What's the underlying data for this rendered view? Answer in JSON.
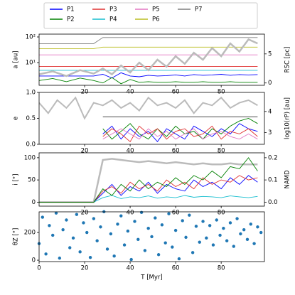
{
  "chart_data": [
    {
      "type": "line",
      "ylabel": "a [au]",
      "y2label": "RSC [pc]",
      "ylog": true,
      "x": [
        0,
        6,
        12,
        18,
        24,
        28,
        32,
        36,
        40,
        44,
        48,
        52,
        56,
        60,
        64,
        68,
        72,
        76,
        80,
        84,
        88,
        92,
        96
      ],
      "xlim": [
        0,
        99
      ],
      "xticks": [
        20,
        40,
        60,
        80
      ],
      "ylim": [
        1.3,
        129
      ],
      "yticks": [
        {
          "value": 10,
          "label": "10¹"
        },
        {
          "value": 100,
          "label": "10²"
        }
      ],
      "y2lim": [
        -0.4,
        8.4
      ],
      "y2ticks": [
        0,
        5
      ],
      "series": [
        {
          "name": "P1",
          "color": "#0000ff",
          "values": [
            3,
            3,
            3,
            3,
            3,
            3.5,
            2.5,
            4,
            3,
            2.8,
            3.2,
            3,
            3.1,
            3.3,
            3,
            3.4,
            3.2,
            3.3,
            3.5,
            3.2,
            3.4,
            3.3,
            3.4
          ]
        },
        {
          "name": "P2",
          "color": "#008000",
          "values": [
            2,
            2.4,
            1.8,
            2.5,
            2,
            1.6,
            2.6,
            1.5,
            2.2,
            1.7,
            1.8,
            1.7,
            1.7,
            1.8,
            1.7,
            1.7,
            1.8,
            1.7,
            1.7,
            1.8,
            1.7,
            1.7,
            1.7
          ]
        },
        {
          "name": "P3",
          "color": "#e03030",
          "values": [
            7,
            7,
            7,
            7,
            7,
            7,
            7,
            7,
            7,
            7,
            7,
            7,
            7,
            7,
            7,
            7,
            7,
            7,
            7,
            7,
            7,
            7,
            7
          ]
        },
        {
          "name": "P4",
          "color": "#17becf",
          "values": [
            5,
            5,
            5,
            5,
            5,
            5,
            5,
            5,
            5,
            5,
            5,
            5,
            5,
            5,
            5,
            5,
            5,
            5,
            5,
            5,
            5,
            5,
            5
          ]
        },
        {
          "name": "P5",
          "color": "#e377c2",
          "values": [
            20,
            20,
            20,
            20,
            20,
            20,
            20,
            20,
            20,
            20,
            20,
            20,
            20,
            20,
            20,
            20,
            20,
            20,
            20,
            20,
            20,
            20,
            20
          ]
        },
        {
          "name": "P6",
          "color": "#bcbd22",
          "values": [
            35,
            35,
            35,
            35,
            35,
            40,
            40,
            40,
            40,
            40,
            40,
            40,
            40,
            40,
            40,
            40,
            40,
            40,
            40,
            40,
            40,
            40,
            40
          ]
        },
        {
          "name": "P7",
          "color": "#7f7f7f",
          "values": [
            55,
            55,
            55,
            55,
            55,
            95,
            95,
            95,
            95,
            95,
            95,
            95,
            95,
            95,
            95,
            95,
            95,
            95,
            95,
            95,
            95,
            95,
            95
          ]
        },
        {
          "color": "#bbbbbb",
          "axis": "y2",
          "width": 2.5,
          "values": [
            1.5,
            2,
            1.2,
            2.2,
            1.6,
            2.5,
            1.5,
            3,
            1.8,
            3.5,
            2.2,
            4,
            2.8,
            4.6,
            3.3,
            5.2,
            4,
            6,
            4.6,
            6.8,
            5.4,
            7.5,
            6.8
          ]
        }
      ]
    },
    {
      "type": "line",
      "ylabel": "e",
      "y2label": "log10(rP) [au]",
      "x": [
        0,
        4,
        8,
        12,
        16,
        20,
        24,
        28,
        32,
        36,
        40,
        44,
        48,
        52,
        56,
        60,
        64,
        68,
        72,
        76,
        80,
        84,
        88,
        92,
        96
      ],
      "xlim": [
        0,
        99
      ],
      "xticks": [
        20,
        40,
        60,
        80
      ],
      "ylim": [
        0,
        1
      ],
      "yticks": [
        {
          "value": 0,
          "label": "0.0"
        },
        0.5,
        {
          "value": 1,
          "label": "1.0"
        }
      ],
      "y2lim": [
        2.45,
        4.9
      ],
      "y2ticks": [
        3,
        4
      ],
      "series": [
        {
          "color": "#bbbbbb",
          "width": 2,
          "values": [
            0.8,
            0.6,
            0.85,
            0.7,
            0.9,
            0.5,
            0.8,
            0.75,
            0.85,
            0.7,
            0.8,
            0.65,
            0.9,
            0.75,
            0.8,
            0.7,
            0.85,
            0.6,
            0.8,
            0.75,
            0.9,
            0.7,
            0.8,
            0.85,
            0.75
          ]
        },
        {
          "color": "#0000ff",
          "values": [
            null,
            null,
            null,
            null,
            null,
            null,
            null,
            0.2,
            0.35,
            0.1,
            0.3,
            0.15,
            0.25,
            0.05,
            0.3,
            0.2,
            0.1,
            0.35,
            0.25,
            0.15,
            0.3,
            0.2,
            0.4,
            0.3,
            0.25
          ]
        },
        {
          "color": "#008000",
          "values": [
            null,
            null,
            null,
            null,
            null,
            null,
            null,
            0.3,
            0.1,
            0.25,
            0.4,
            0.2,
            0.1,
            0.3,
            0.15,
            0.35,
            0.2,
            0.25,
            0.1,
            0.3,
            0.2,
            0.35,
            0.45,
            0.5,
            0.4
          ]
        },
        {
          "color": "#e03030",
          "values": [
            null,
            null,
            null,
            null,
            null,
            null,
            null,
            0.15,
            0.3,
            0.2,
            0.05,
            0.35,
            0.2,
            0.3,
            0.1,
            0.25,
            0.3,
            0.15,
            0.2,
            0.35,
            0.1,
            0.25,
            0.2,
            0.3,
            0.15
          ]
        },
        {
          "color": "#e377c2",
          "values": [
            null,
            null,
            null,
            null,
            null,
            null,
            null,
            0.1,
            0.2,
            0.3,
            0.2,
            0.1,
            0.3,
            0.15,
            0.25,
            0.1,
            0.2,
            0.3,
            0.1,
            0.2,
            0.25,
            0.15,
            0.1,
            0.2,
            0.1
          ]
        },
        {
          "color": "#333333",
          "axis": "y2",
          "values": [
            null,
            null,
            null,
            null,
            null,
            null,
            null,
            3.75,
            3.75,
            3.75,
            3.75,
            3.75,
            3.75,
            3.75,
            3.75,
            3.75,
            3.75,
            3.75,
            3.75,
            3.75,
            3.75,
            3.75,
            3.75,
            3.75,
            3.75
          ]
        }
      ]
    },
    {
      "type": "line",
      "ylabel": "i [°]",
      "y2label": "NAMD",
      "x": [
        0,
        4,
        8,
        12,
        16,
        20,
        24,
        28,
        32,
        36,
        40,
        44,
        48,
        52,
        56,
        60,
        64,
        68,
        72,
        76,
        80,
        84,
        88,
        92,
        96
      ],
      "xlim": [
        0,
        99
      ],
      "xticks": [
        20,
        40,
        60,
        80
      ],
      "ylim": [
        -9,
        111
      ],
      "yticks": [
        0,
        50,
        100
      ],
      "y2lim": [
        -0.018,
        0.222
      ],
      "y2ticks": [
        {
          "value": 0,
          "label": "0.0"
        },
        0.1,
        0.2
      ],
      "series": [
        {
          "color": "#bbbbbb",
          "axis": "y2",
          "width": 2.5,
          "values": [
            0,
            0,
            0,
            0,
            0,
            0,
            0,
            0.19,
            0.195,
            0.19,
            0.185,
            0.18,
            0.185,
            0.18,
            0.175,
            0.18,
            0.175,
            0.17,
            0.175,
            0.17,
            0.17,
            0.175,
            0.17,
            0.17,
            0.17
          ]
        },
        {
          "color": "#0000ff",
          "values": [
            0,
            0,
            0,
            0,
            0,
            0,
            0,
            20,
            40,
            15,
            35,
            25,
            45,
            20,
            40,
            30,
            25,
            50,
            35,
            45,
            30,
            55,
            40,
            60,
            45
          ]
        },
        {
          "color": "#17becf",
          "values": [
            0,
            0,
            0,
            0,
            0,
            0,
            0,
            10,
            15,
            8,
            12,
            10,
            14,
            9,
            12,
            10,
            15,
            11,
            13,
            12,
            10,
            14,
            12,
            10,
            13
          ]
        },
        {
          "color": "#e03030",
          "values": [
            0,
            0,
            0,
            0,
            0,
            0,
            0,
            25,
            35,
            20,
            45,
            30,
            40,
            25,
            50,
            35,
            45,
            30,
            55,
            40,
            50,
            45,
            60,
            50,
            55
          ]
        },
        {
          "color": "#008000",
          "values": [
            0,
            0,
            0,
            0,
            0,
            0,
            0,
            30,
            15,
            40,
            25,
            50,
            30,
            45,
            35,
            55,
            40,
            60,
            50,
            70,
            55,
            80,
            75,
            100,
            70
          ]
        }
      ]
    },
    {
      "type": "scatter",
      "ylabel": "θZ [°]",
      "xlabel": "T [Myr]",
      "color": "#1f77b4",
      "x": [
        0,
        1.5,
        3,
        4.5,
        6,
        7.5,
        9,
        10.5,
        12,
        13.5,
        15,
        16.5,
        18,
        19.5,
        21,
        22.5,
        24,
        25.5,
        27,
        28.5,
        30,
        31.5,
        33,
        34.5,
        36,
        37.5,
        39,
        40.5,
        42,
        43.5,
        45,
        46.5,
        48,
        49.5,
        51,
        52.5,
        54,
        55.5,
        57,
        58.5,
        60,
        61.5,
        63,
        64.5,
        66,
        67.5,
        69,
        70.5,
        72,
        73.5,
        75,
        76.5,
        78,
        79.5,
        81,
        82.5,
        84,
        85.5,
        87,
        88.5,
        90,
        91.5,
        93,
        94.5,
        96,
        97.5
      ],
      "values": [
        120,
        310,
        45,
        250,
        180,
        340,
        15,
        220,
        290,
        90,
        160,
        330,
        60,
        270,
        200,
        20,
        300,
        140,
        240,
        350,
        80,
        190,
        30,
        260,
        320,
        110,
        210,
        5,
        280,
        150,
        345,
        70,
        230,
        170,
        305,
        40,
        255,
        125,
        335,
        95,
        215,
        10,
        285,
        165,
        325,
        55,
        245,
        130,
        280,
        160,
        250,
        110,
        290,
        180,
        230,
        140,
        270,
        100,
        300,
        190,
        220,
        150,
        260,
        120,
        240,
        200
      ],
      "xlim": [
        0,
        99
      ],
      "xticks": [
        0,
        20,
        40,
        60,
        80
      ],
      "ylim": [
        -10,
        349
      ],
      "yticks": [
        0,
        200
      ]
    }
  ]
}
